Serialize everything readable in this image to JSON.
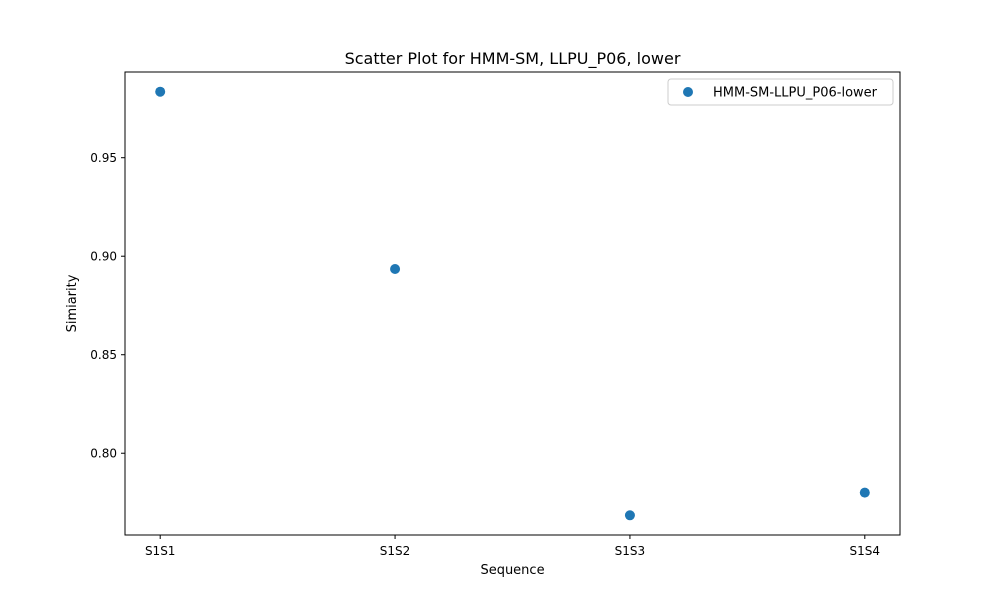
{
  "chart_data": {
    "type": "scatter",
    "title": "Scatter Plot for HMM-SM, LLPU_P06, lower",
    "xlabel": "Sequence",
    "ylabel": "Simiarity",
    "categories": [
      "S1S1",
      "S1S2",
      "S1S3",
      "S1S4"
    ],
    "series": [
      {
        "name": "HMM-SM-LLPU_P06-lower",
        "color": "#1f77b4",
        "values": [
          0.9835,
          0.8935,
          0.7685,
          0.78
        ]
      }
    ],
    "ylim": [
      0.7585,
      0.9935
    ],
    "yticks": [
      0.8,
      0.85,
      0.9,
      0.95
    ],
    "ytick_labels": [
      "0.80",
      "0.85",
      "0.90",
      "0.95"
    ],
    "grid": false,
    "legend_position": "top-right"
  }
}
